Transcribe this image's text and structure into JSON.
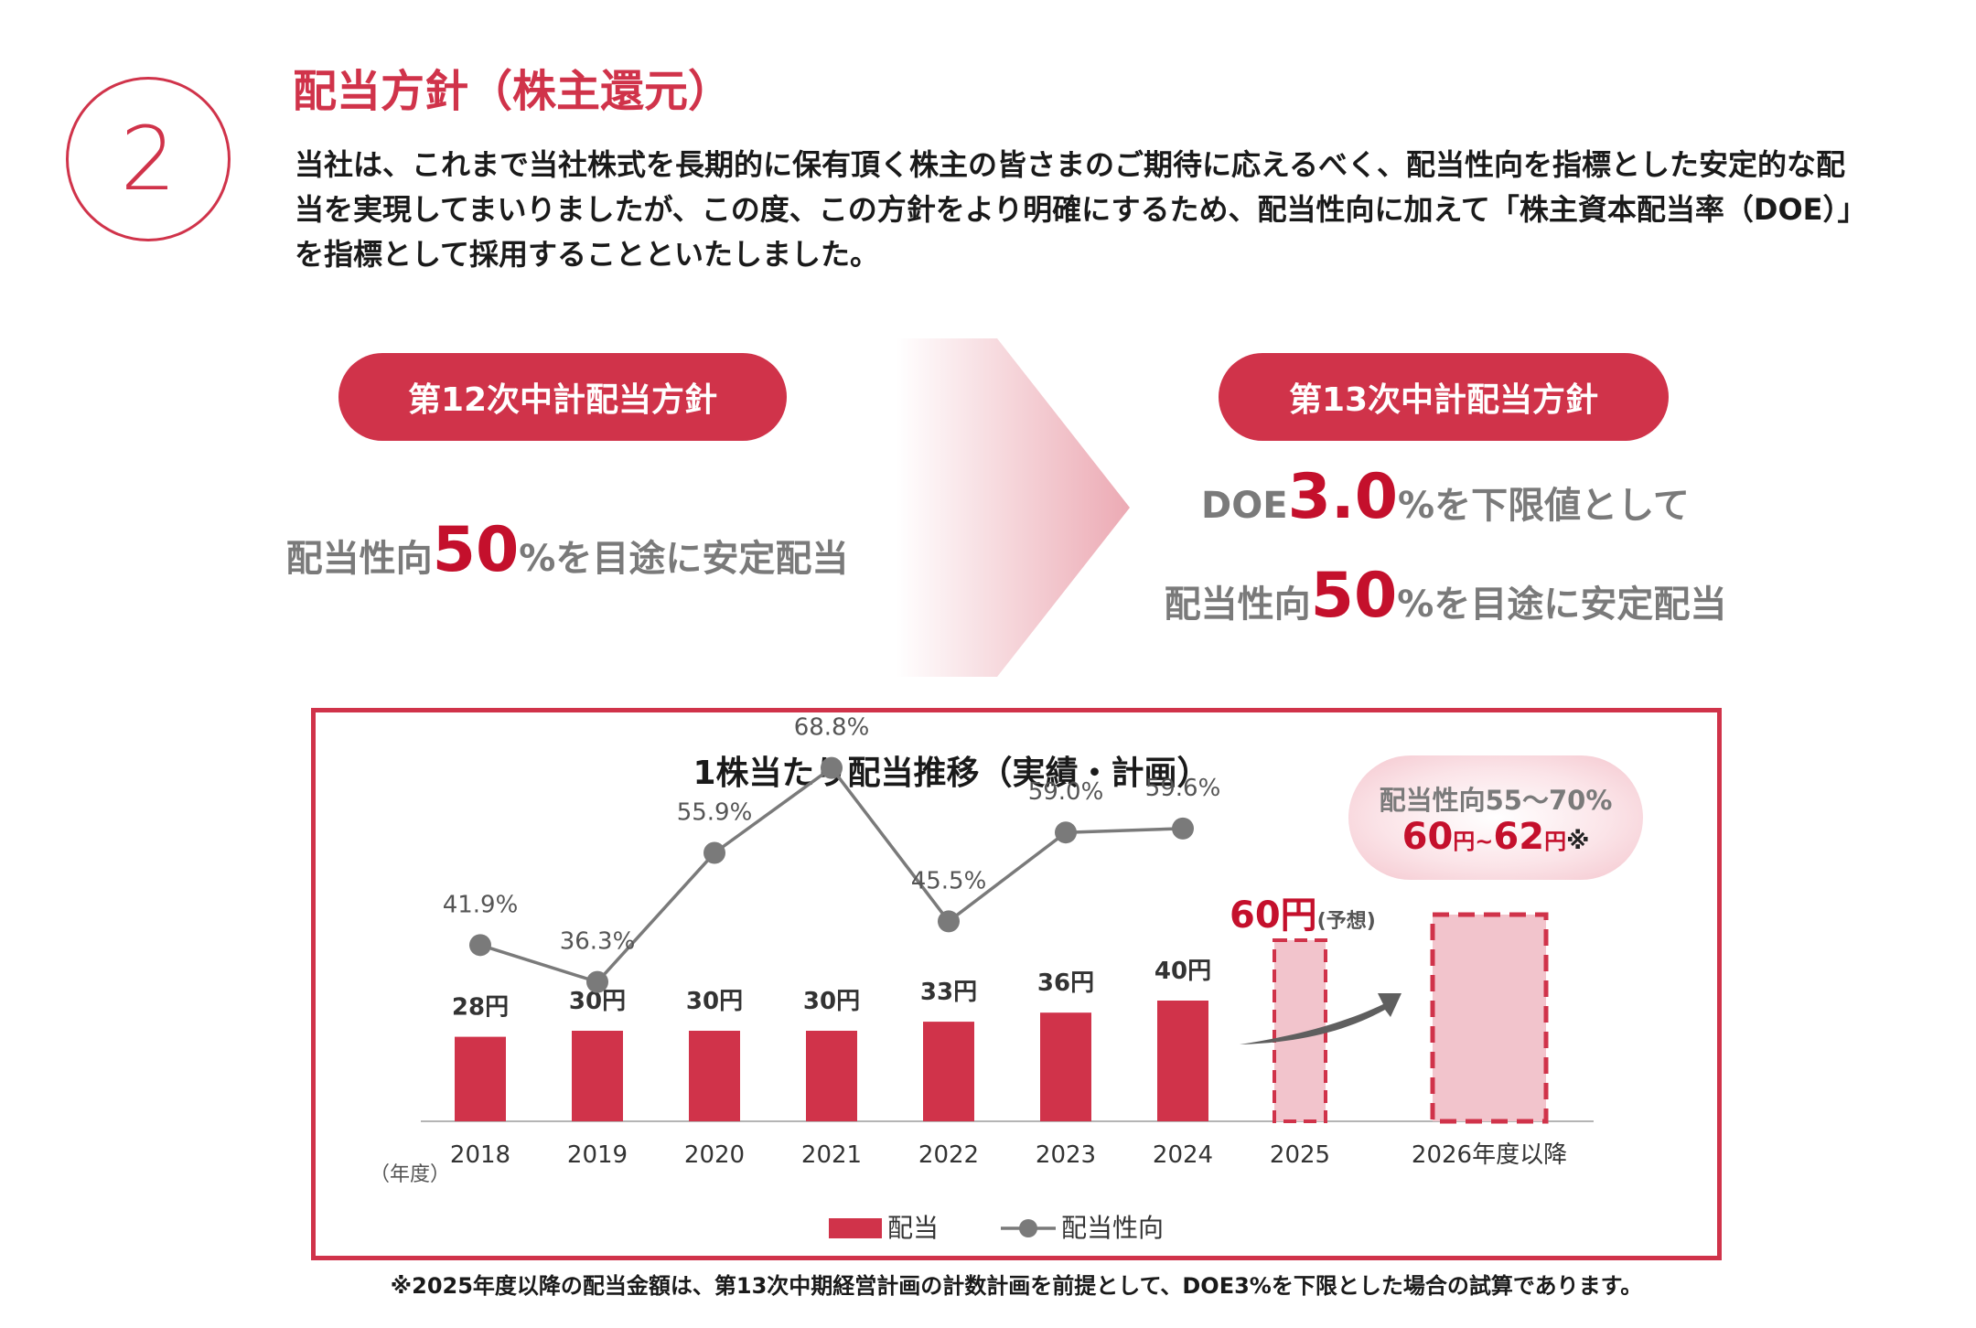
{
  "section_number": "2",
  "title": "配当方針（株主還元）",
  "intro": "当社は、これまで当社株式を長期的に保有頂く株主の皆さまのご期待に応えるべく、配当性向を指標とした安定的な配当を実現してまいりましたが、この度、この方針をより明確にするため、配当性向に加えて「株主資本配当率（DOE）」を指標として採用することといたしました。",
  "old_policy": {
    "label": "第12次中計配当方針",
    "prefix": "配当性向",
    "big": "50",
    "suffix": "%を目途に安定配当"
  },
  "new_policy": {
    "label": "第13次中計配当方針",
    "line1_prefix": "DOE",
    "line1_big": "3.0",
    "line1_suffix": "%を下限値として",
    "line2_prefix": "配当性向",
    "line2_big": "50",
    "line2_suffix": "%を目途に安定配当"
  },
  "forecast_label": {
    "value": "60円",
    "note": "(予想)"
  },
  "bubble": {
    "line1": "配当性向55～70%",
    "v1": "60",
    "u1": "円",
    "sep": "~",
    "v2": "62",
    "u2": "円",
    "mark": "※"
  },
  "footnote": "※2025年度以降の配当金額は、第13次中期経営計画の計数計画を前提として、DOE3%を下限とした場合の試算であります。",
  "chart_data": {
    "type": "bar",
    "title": "1株当たり配当推移（実績・計画）",
    "x_unit_label": "（年度）",
    "categories": [
      "2018",
      "2019",
      "2020",
      "2021",
      "2022",
      "2023",
      "2024",
      "2025",
      "2026年度以降"
    ],
    "series": [
      {
        "name": "配当",
        "unit": "円",
        "values": [
          28,
          30,
          30,
          30,
          33,
          36,
          40,
          60,
          null
        ],
        "labels": [
          "28円",
          "30円",
          "30円",
          "30円",
          "33円",
          "36円",
          "40円",
          "",
          ""
        ],
        "color": "#d0334a",
        "forecast_color": "#f2c4cc"
      },
      {
        "name": "配当性向",
        "unit": "%",
        "values": [
          41.9,
          36.3,
          55.9,
          68.8,
          45.5,
          59.0,
          59.6,
          null,
          null
        ],
        "labels": [
          "41.9%",
          "36.3%",
          "55.9%",
          "68.8%",
          "45.5%",
          "59.0%",
          "59.6%",
          "",
          ""
        ],
        "color": "#7a7a7a"
      }
    ],
    "plan_range": [
      60,
      62
    ],
    "legend": {
      "bar": "配当",
      "line": "配当性向"
    },
    "legend_position": "bottom"
  },
  "colors": {
    "accent": "#d0334a",
    "emphasis": "#c4102c",
    "gray": "#7a7a7a"
  }
}
